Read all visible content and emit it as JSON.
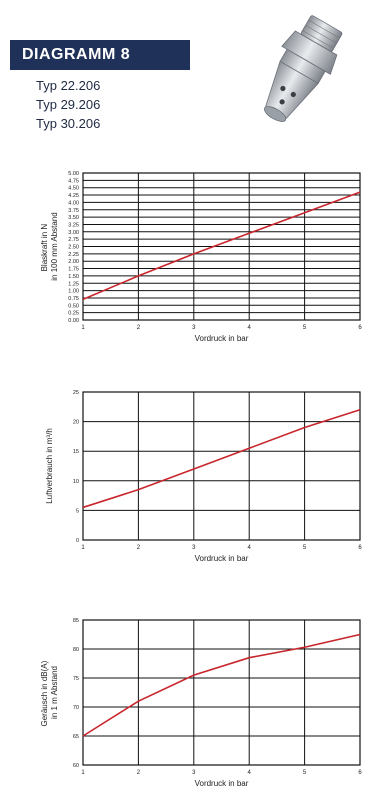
{
  "header": {
    "title": "DIAGRAMM 8",
    "types": [
      "Typ 22.206",
      "Typ 29.206",
      "Typ 30.206"
    ]
  },
  "colors": {
    "banner": "#1f3158",
    "curve": "#c8262c",
    "grid": "#111111"
  },
  "chart_data": [
    {
      "type": "line",
      "xlabel": "Vordruck in bar",
      "ylabel_lines": [
        "Blaskraft in N",
        "in 100 mm Abstand"
      ],
      "xlim": [
        1,
        6
      ],
      "ylim": [
        0,
        5
      ],
      "x_ticks": [
        "1",
        "2",
        "3",
        "4",
        "5",
        "6"
      ],
      "y_ticks": [
        "0.00",
        "0.25",
        "0.50",
        "0.75",
        "1.00",
        "1.25",
        "1.50",
        "1.75",
        "2.00",
        "2.25",
        "2.50",
        "2.75",
        "3.00",
        "3.25",
        "3.50",
        "3.75",
        "4.00",
        "4.25",
        "4.50",
        "4.75",
        "5.00"
      ],
      "grid": true,
      "series": [
        {
          "x": [
            1,
            2,
            3,
            4,
            5,
            6
          ],
          "values": [
            0.7,
            1.5,
            2.25,
            2.95,
            3.65,
            4.35
          ]
        }
      ]
    },
    {
      "type": "line",
      "xlabel": "Vordruck in bar",
      "ylabel_lines": [
        "Luftverbrauch in m³/h"
      ],
      "xlim": [
        1,
        6
      ],
      "ylim": [
        0,
        25
      ],
      "x_ticks": [
        "1",
        "2",
        "3",
        "4",
        "5",
        "6"
      ],
      "y_ticks": [
        "0",
        "5",
        "10",
        "15",
        "20",
        "25"
      ],
      "grid": true,
      "series": [
        {
          "x": [
            1,
            2,
            3,
            4,
            5,
            6
          ],
          "values": [
            5.5,
            8.5,
            12.0,
            15.5,
            19.0,
            22.0
          ]
        }
      ]
    },
    {
      "type": "line",
      "xlabel": "Vordruck in bar",
      "ylabel_lines": [
        "Geräusch in dB(A)",
        "in 1 m Abstand"
      ],
      "xlim": [
        1,
        6
      ],
      "ylim": [
        60,
        85
      ],
      "x_ticks": [
        "1",
        "2",
        "3",
        "4",
        "5",
        "6"
      ],
      "y_ticks": [
        "60",
        "65",
        "70",
        "75",
        "80",
        "85"
      ],
      "grid": true,
      "series": [
        {
          "x": [
            1,
            2,
            3,
            4,
            5,
            6
          ],
          "values": [
            65.0,
            71.0,
            75.5,
            78.5,
            80.3,
            82.5
          ]
        }
      ]
    }
  ]
}
